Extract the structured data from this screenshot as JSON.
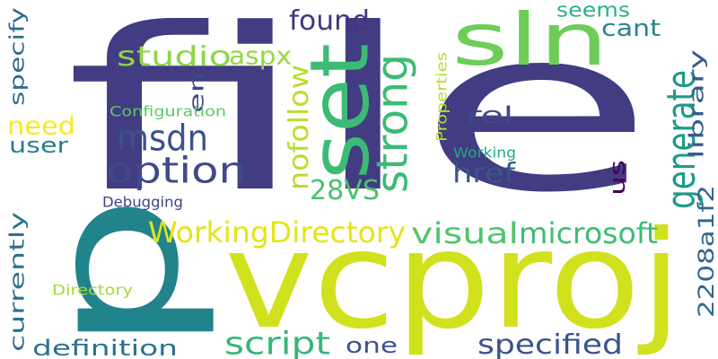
{
  "words": [
    {
      "text": "file",
      "color": "#423c83",
      "vertical": false
    },
    {
      "text": "p",
      "color": "#21838c",
      "vertical": true
    },
    {
      "text": "vcproj",
      "color": "#d1e11d",
      "vertical": false
    },
    {
      "text": "set",
      "color": "#3cbb75",
      "vertical": true
    },
    {
      "text": "sln",
      "color": "#6dcd59",
      "vertical": false
    },
    {
      "text": "strong",
      "color": "#3cbb75",
      "vertical": true
    },
    {
      "text": "option",
      "color": "#3e4a89",
      "vertical": false
    },
    {
      "text": "msdn",
      "color": "#3b528b",
      "vertical": false
    },
    {
      "text": "generate",
      "color": "#1e9b8a",
      "vertical": true
    },
    {
      "text": "visual",
      "color": "#51c56a",
      "vertical": false
    },
    {
      "text": "microsoft",
      "color": "#3dbc74",
      "vertical": false
    },
    {
      "text": "WorkingDirectory",
      "color": "#e4e419",
      "vertical": false
    },
    {
      "text": "found",
      "color": "#46337f",
      "vertical": false
    },
    {
      "text": "studio",
      "color": "#8ed645",
      "vertical": false
    },
    {
      "text": "aspx",
      "color": "#95d840",
      "vertical": false
    },
    {
      "text": "nofollow",
      "color": "#b8de29",
      "vertical": true
    },
    {
      "text": "28VS",
      "color": "#4ac16d",
      "vertical": false
    },
    {
      "text": "script",
      "color": "#35b779",
      "vertical": false
    },
    {
      "text": "specified",
      "color": "#3b528b",
      "vertical": false
    },
    {
      "text": "definition",
      "color": "#2c728e",
      "vertical": false
    },
    {
      "text": "currently",
      "color": "#2c728e",
      "vertical": true
    },
    {
      "text": "specify",
      "color": "#2f6c8e",
      "vertical": true
    },
    {
      "text": "need",
      "color": "#fde725",
      "vertical": false
    },
    {
      "text": "user",
      "color": "#287d8e",
      "vertical": false
    },
    {
      "text": "en",
      "color": "#404688",
      "vertical": true
    },
    {
      "text": "rel",
      "color": "#3e4989",
      "vertical": false
    },
    {
      "text": "href",
      "color": "#39568c",
      "vertical": false
    },
    {
      "text": "us",
      "color": "#440154",
      "vertical": true
    },
    {
      "text": "library",
      "color": "#365c8d",
      "vertical": true
    },
    {
      "text": "seems",
      "color": "#2db27d",
      "vertical": false
    },
    {
      "text": "cant",
      "color": "#25858e",
      "vertical": false
    },
    {
      "text": "2208a1f2",
      "color": "#31688e",
      "vertical": true
    },
    {
      "text": "one",
      "color": "#3b528b",
      "vertical": false
    },
    {
      "text": "Configuration",
      "color": "#5ec962",
      "vertical": false
    },
    {
      "text": "Properties",
      "color": "#b5de2b",
      "vertical": true
    },
    {
      "text": "Working",
      "color": "#22a884",
      "vertical": false
    },
    {
      "text": "Debugging",
      "color": "#414487",
      "vertical": false
    },
    {
      "text": "Directory",
      "color": "#a2da37",
      "vertical": false
    }
  ]
}
